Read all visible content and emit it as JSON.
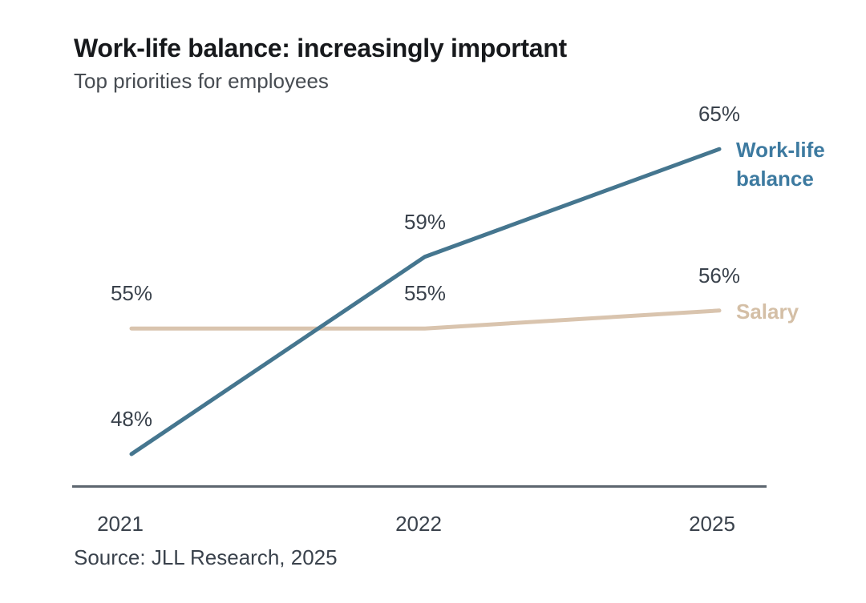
{
  "chart_data": {
    "type": "line",
    "title": "Work-life balance: increasingly important",
    "subtitle": "Top priorities for employees",
    "source": "Source: JLL Research, 2025",
    "x": [
      "2021",
      "2022",
      "2025"
    ],
    "series": [
      {
        "name": "Work-life balance",
        "name_wrapped": "Work-life\nbalance",
        "values": [
          48,
          59,
          65
        ],
        "point_labels": [
          "48%",
          "59%",
          "65%"
        ],
        "line_color": "#45768f",
        "label_color": "#3d7aa0"
      },
      {
        "name": "Salary",
        "name_wrapped": "Salary",
        "values": [
          55,
          55,
          56
        ],
        "point_labels": [
          "55%",
          "55%",
          "56%"
        ],
        "line_color": "#d9c4ae",
        "label_color": "#d4bfa6"
      }
    ],
    "ylim": [
      46,
      67
    ],
    "grid": false,
    "legend_position": "line-end-labels",
    "colors": {
      "text_dark": "#3a424c",
      "axis_line": "#5d666f",
      "background": "#ffffff"
    }
  }
}
